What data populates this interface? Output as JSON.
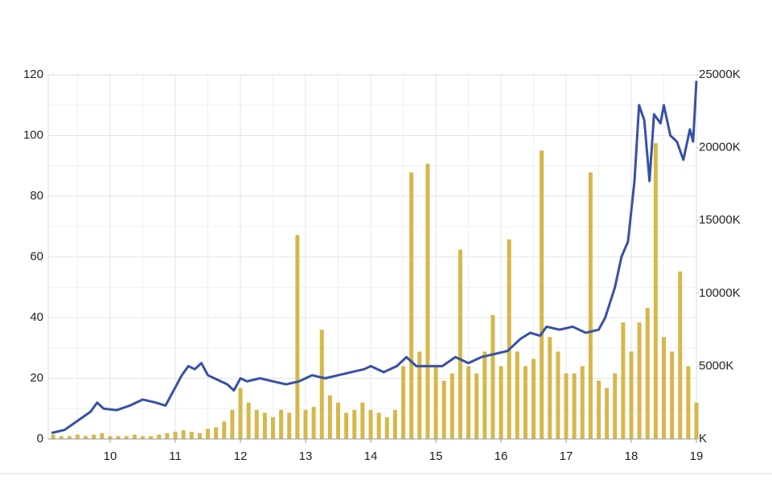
{
  "chart_data": {
    "type": "line",
    "xlim": [
      9.05,
      19
    ],
    "xticks": [
      10,
      11,
      12,
      13,
      14,
      15,
      16,
      17,
      18,
      19
    ],
    "ylim": [
      0,
      120
    ],
    "yticks": [
      0,
      20,
      40,
      60,
      80,
      100,
      120
    ],
    "y2lim": [
      0,
      25000
    ],
    "y2ticks": [
      {
        "value": 0,
        "label": "K"
      },
      {
        "value": 5000,
        "label": "5000K"
      },
      {
        "value": 10000,
        "label": "10000K"
      },
      {
        "value": 15000,
        "label": "15000K"
      },
      {
        "value": 20000,
        "label": "20000K"
      },
      {
        "value": 25000,
        "label": "25000K"
      }
    ],
    "grid": true,
    "series": [
      {
        "type": "bar",
        "axis": "y2",
        "color": "#d6b74a",
        "x": [
          9.125,
          9.25,
          9.375,
          9.5,
          9.625,
          9.75,
          9.875,
          10.0,
          10.125,
          10.25,
          10.375,
          10.5,
          10.625,
          10.75,
          10.875,
          11.0,
          11.125,
          11.25,
          11.375,
          11.5,
          11.625,
          11.75,
          11.875,
          12.0,
          12.125,
          12.25,
          12.375,
          12.5,
          12.625,
          12.75,
          12.875,
          13.0,
          13.125,
          13.25,
          13.375,
          13.5,
          13.625,
          13.75,
          13.875,
          14.0,
          14.125,
          14.25,
          14.375,
          14.5,
          14.625,
          14.75,
          14.875,
          15.0,
          15.125,
          15.25,
          15.375,
          15.5,
          15.625,
          15.75,
          15.875,
          16.0,
          16.125,
          16.25,
          16.375,
          16.5,
          16.625,
          16.75,
          16.875,
          17.0,
          17.125,
          17.25,
          17.375,
          17.5,
          17.625,
          17.75,
          17.875,
          18.0,
          18.125,
          18.25,
          18.375,
          18.5,
          18.625,
          18.75,
          18.875,
          19.0
        ],
        "values": [
          300,
          200,
          200,
          300,
          200,
          300,
          400,
          200,
          200,
          200,
          300,
          200,
          200,
          300,
          400,
          500,
          600,
          500,
          400,
          700,
          800,
          1200,
          2000,
          3500,
          2500,
          2000,
          1800,
          1500,
          2000,
          1800,
          14000,
          2000,
          2200,
          7500,
          3000,
          2500,
          1800,
          2000,
          2500,
          2000,
          1800,
          1500,
          2000,
          5000,
          18300,
          6000,
          18900,
          5000,
          4000,
          4500,
          13000,
          5000,
          4500,
          6000,
          8500,
          5000,
          13700,
          6000,
          5000,
          5500,
          19800,
          7000,
          6000,
          4500,
          4500,
          5000,
          18300,
          4000,
          3500,
          4500,
          8000,
          6000,
          8000,
          9000,
          20300,
          7000,
          6000,
          11500,
          5000,
          2500
        ]
      },
      {
        "type": "line",
        "axis": "y",
        "color": "#3651a6",
        "x": [
          9.1,
          9.3,
          9.5,
          9.7,
          9.8,
          9.9,
          10.1,
          10.3,
          10.5,
          10.7,
          10.85,
          11.0,
          11.1,
          11.2,
          11.3,
          11.4,
          11.5,
          11.6,
          11.8,
          11.9,
          12.0,
          12.1,
          12.3,
          12.5,
          12.7,
          12.9,
          13.1,
          13.3,
          13.5,
          13.7,
          13.9,
          14.0,
          14.2,
          14.4,
          14.55,
          14.7,
          14.9,
          15.1,
          15.3,
          15.5,
          15.7,
          15.9,
          16.1,
          16.3,
          16.45,
          16.6,
          16.7,
          16.9,
          17.1,
          17.3,
          17.5,
          17.6,
          17.75,
          17.85,
          17.95,
          18.05,
          18.12,
          18.2,
          18.28,
          18.35,
          18.45,
          18.5,
          18.6,
          18.7,
          18.8,
          18.9,
          18.95,
          19.0
        ],
        "values": [
          2,
          3,
          6,
          9,
          12,
          10,
          9.5,
          11,
          13,
          12,
          11,
          17,
          21,
          24,
          23,
          25,
          21,
          20,
          18,
          16,
          20,
          19,
          20,
          19,
          18,
          19,
          21,
          20,
          21,
          22,
          23,
          24,
          22,
          24,
          27,
          24,
          24,
          24,
          27,
          25,
          27,
          28,
          29,
          33,
          35,
          34,
          37,
          36,
          37,
          35,
          36,
          40,
          50,
          60,
          65,
          85,
          110,
          105,
          85,
          107,
          104,
          110,
          100,
          98,
          92,
          102,
          98,
          118
        ]
      }
    ]
  }
}
